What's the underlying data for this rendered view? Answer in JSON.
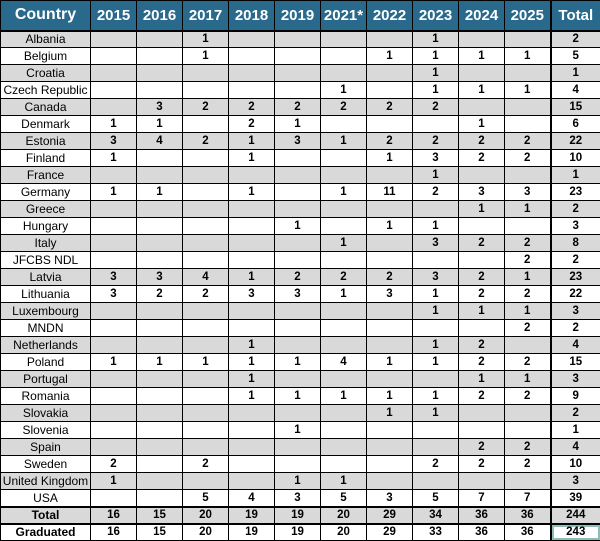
{
  "colors": {
    "header_bg": "#29698B",
    "header_fg": "#FFFFFF",
    "row_alt_bg": "#D9D9D9",
    "row_bg": "#FFFFFF",
    "grid": "#000000",
    "highlight_border": "#8FBCB4"
  },
  "chart_data": {
    "type": "table",
    "title": "Participants by country and year",
    "columns": [
      "Country",
      "2015",
      "2016",
      "2017",
      "2018",
      "2019",
      "2021*",
      "2022",
      "2023",
      "2024",
      "2025",
      "Total"
    ],
    "rows": [
      [
        "Albania",
        "",
        "",
        "1",
        "",
        "",
        "",
        "",
        "1",
        "",
        "",
        "2"
      ],
      [
        "Belgium",
        "",
        "",
        "1",
        "",
        "",
        "",
        "1",
        "1",
        "1",
        "1",
        "5"
      ],
      [
        "Croatia",
        "",
        "",
        "",
        "",
        "",
        "",
        "",
        "1",
        "",
        "",
        "1"
      ],
      [
        "Czech Republic",
        "",
        "",
        "",
        "",
        "",
        "1",
        "",
        "1",
        "1",
        "1",
        "4"
      ],
      [
        "Canada",
        "",
        "3",
        "2",
        "2",
        "2",
        "2",
        "2",
        "2",
        "",
        "",
        "15"
      ],
      [
        "Denmark",
        "1",
        "1",
        "",
        "2",
        "1",
        "",
        "",
        "",
        "1",
        "",
        "6"
      ],
      [
        "Estonia",
        "3",
        "4",
        "2",
        "1",
        "3",
        "1",
        "2",
        "2",
        "2",
        "2",
        "22"
      ],
      [
        "Finland",
        "1",
        "",
        "",
        "1",
        "",
        "",
        "1",
        "3",
        "2",
        "2",
        "10"
      ],
      [
        "France",
        "",
        "",
        "",
        "",
        "",
        "",
        "",
        "1",
        "",
        "",
        "1"
      ],
      [
        "Germany",
        "1",
        "1",
        "",
        "1",
        "",
        "1",
        "11",
        "2",
        "3",
        "3",
        "23"
      ],
      [
        "Greece",
        "",
        "",
        "",
        "",
        "",
        "",
        "",
        "",
        "1",
        "1",
        "2"
      ],
      [
        "Hungary",
        "",
        "",
        "",
        "",
        "1",
        "",
        "1",
        "1",
        "",
        "",
        "3"
      ],
      [
        "Italy",
        "",
        "",
        "",
        "",
        "",
        "1",
        "",
        "3",
        "2",
        "2",
        "8"
      ],
      [
        "JFCBS NDL",
        "",
        "",
        "",
        "",
        "",
        "",
        "",
        "",
        "",
        "2",
        "2"
      ],
      [
        "Latvia",
        "3",
        "3",
        "4",
        "1",
        "2",
        "2",
        "2",
        "3",
        "2",
        "1",
        "23"
      ],
      [
        "Lithuania",
        "3",
        "2",
        "2",
        "3",
        "3",
        "1",
        "3",
        "1",
        "2",
        "2",
        "22"
      ],
      [
        "Luxembourg",
        "",
        "",
        "",
        "",
        "",
        "",
        "",
        "1",
        "1",
        "1",
        "3"
      ],
      [
        "MNDN",
        "",
        "",
        "",
        "",
        "",
        "",
        "",
        "",
        "",
        "2",
        "2"
      ],
      [
        "Netherlands",
        "",
        "",
        "",
        "1",
        "",
        "",
        "",
        "1",
        "2",
        "",
        "4"
      ],
      [
        "Poland",
        "1",
        "1",
        "1",
        "1",
        "1",
        "4",
        "1",
        "1",
        "2",
        "2",
        "15"
      ],
      [
        "Portugal",
        "",
        "",
        "",
        "1",
        "",
        "",
        "",
        "",
        "1",
        "1",
        "3"
      ],
      [
        "Romania",
        "",
        "",
        "",
        "1",
        "1",
        "1",
        "1",
        "1",
        "2",
        "2",
        "9"
      ],
      [
        "Slovakia",
        "",
        "",
        "",
        "",
        "",
        "",
        "1",
        "1",
        "",
        "",
        "2"
      ],
      [
        "Slovenia",
        "",
        "",
        "",
        "",
        "1",
        "",
        "",
        "",
        "",
        "",
        "1"
      ],
      [
        "Spain",
        "",
        "",
        "",
        "",
        "",
        "",
        "",
        "",
        "2",
        "2",
        "4"
      ],
      [
        "Sweden",
        "2",
        "",
        "2",
        "",
        "",
        "",
        "",
        "2",
        "2",
        "2",
        "10"
      ],
      [
        "United Kingdom",
        "1",
        "",
        "",
        "",
        "1",
        "1",
        "",
        "",
        "",
        "",
        "3"
      ],
      [
        "USA",
        "",
        "",
        "5",
        "4",
        "3",
        "5",
        "3",
        "5",
        "7",
        "7",
        "39"
      ],
      [
        "Total",
        "16",
        "15",
        "20",
        "19",
        "19",
        "20",
        "29",
        "34",
        "36",
        "36",
        "244"
      ],
      [
        "Graduated",
        "16",
        "15",
        "20",
        "19",
        "19",
        "20",
        "29",
        "33",
        "36",
        "36",
        "243"
      ]
    ],
    "summary_row_labels": [
      "Total",
      "Graduated"
    ],
    "layout": {
      "zebra_striping": true,
      "first_data_row_shaded": true,
      "highlighted_cell": "Graduated Total"
    }
  }
}
